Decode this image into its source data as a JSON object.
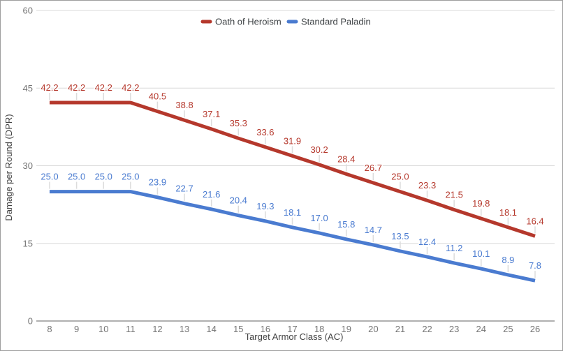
{
  "chart_data": {
    "type": "line",
    "title": "",
    "xlabel": "Target Armor Class (AC)",
    "ylabel": "Damage per Round (DPR)",
    "x": [
      8,
      9,
      10,
      11,
      12,
      13,
      14,
      15,
      16,
      17,
      18,
      19,
      20,
      21,
      22,
      23,
      24,
      25,
      26
    ],
    "x_tick_labels": [
      "8",
      "9",
      "10",
      "11",
      "12",
      "13",
      "14",
      "15",
      "16",
      "17",
      "18",
      "19",
      "20",
      "21",
      "22",
      "23",
      "24",
      "25",
      "26"
    ],
    "ylim": [
      0,
      60
    ],
    "yticks": [
      0,
      15,
      30,
      45,
      60
    ],
    "y_tick_labels": [
      "0",
      "15",
      "30",
      "45",
      "60"
    ],
    "grid": true,
    "legend_position": "top-center",
    "series": [
      {
        "name": "Oath of Heroism",
        "color": "#b5382c",
        "values": [
          42.2,
          42.2,
          42.2,
          42.2,
          40.5,
          38.8,
          37.1,
          35.3,
          33.6,
          31.9,
          30.2,
          28.4,
          26.7,
          25.0,
          23.3,
          21.5,
          19.8,
          18.1,
          16.4
        ],
        "point_labels": [
          "42.2",
          "42.2",
          "42.2",
          "42.2",
          "40.5",
          "38.8",
          "37.1",
          "35.3",
          "33.6",
          "31.9",
          "30.2",
          "28.4",
          "26.7",
          "25.0",
          "23.3",
          "21.5",
          "19.8",
          "18.1",
          "16.4"
        ]
      },
      {
        "name": "Standard Paladin",
        "color": "#4a7bd0",
        "values": [
          25.0,
          25.0,
          25.0,
          25.0,
          23.9,
          22.7,
          21.6,
          20.4,
          19.3,
          18.1,
          17.0,
          15.8,
          14.7,
          13.5,
          12.4,
          11.2,
          10.1,
          8.9,
          7.8
        ],
        "point_labels": [
          "25.0",
          "25.0",
          "25.0",
          "25.0",
          "23.9",
          "22.7",
          "21.6",
          "20.4",
          "19.3",
          "18.1",
          "17.0",
          "15.8",
          "14.7",
          "13.5",
          "12.4",
          "11.2",
          "10.1",
          "8.9",
          "7.8"
        ]
      }
    ]
  },
  "style_colors": {
    "gridline": "#d9d9d9",
    "axis_baseline": "#616161",
    "tick_text": "#757575",
    "label_stem": "#dcdcdc",
    "border": "#9e9e9e"
  }
}
